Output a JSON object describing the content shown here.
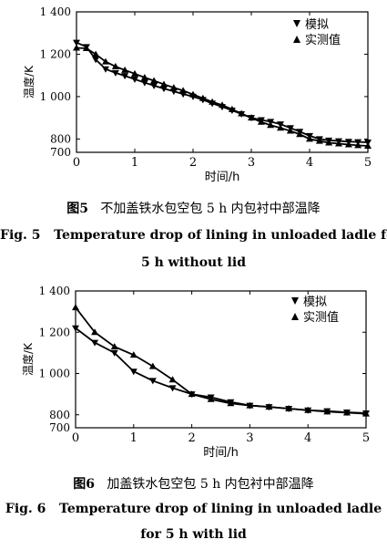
{
  "chart_data": [
    {
      "type": "line",
      "x_range": [
        0,
        5
      ],
      "ylim": [
        700,
        1400
      ],
      "x_ticks": [
        "0",
        "1",
        "2",
        "3",
        "4",
        "5"
      ],
      "y_ticks": [
        "1 400",
        "1 200",
        "1 000",
        "800",
        "700"
      ],
      "y_tick_values": [
        1400,
        1200,
        1000,
        800,
        700
      ],
      "xlabel": "时间/h",
      "ylabel": "温度/K",
      "legend_position": "top-right",
      "series": [
        {
          "name": "模拟",
          "marker": "triangle-down",
          "x": [
            0,
            0.17,
            0.33,
            0.5,
            0.67,
            0.83,
            1.0,
            1.17,
            1.33,
            1.5,
            1.67,
            1.83,
            2.0,
            2.17,
            2.33,
            2.5,
            2.67,
            2.83,
            3.0,
            3.17,
            3.33,
            3.5,
            3.67,
            3.83,
            4.0,
            4.17,
            4.33,
            4.5,
            4.67,
            4.83,
            5.0
          ],
          "y": [
            1255,
            1235,
            1175,
            1130,
            1112,
            1098,
            1082,
            1066,
            1052,
            1038,
            1025,
            1012,
            1000,
            985,
            968,
            952,
            935,
            918,
            900,
            890,
            882,
            870,
            852,
            835,
            815,
            800,
            790,
            785,
            780,
            778,
            775
          ]
        },
        {
          "name": "实测值",
          "marker": "triangle-up",
          "x": [
            0,
            0.17,
            0.33,
            0.5,
            0.67,
            0.83,
            1.0,
            1.17,
            1.33,
            1.5,
            1.67,
            1.83,
            2.0,
            2.17,
            2.33,
            2.5,
            2.67,
            2.83,
            3.0,
            3.17,
            3.33,
            3.5,
            3.67,
            3.83,
            4.0,
            4.17,
            4.33,
            4.5,
            4.67,
            4.83,
            5.0
          ],
          "y": [
            1230,
            1228,
            1200,
            1165,
            1142,
            1125,
            1108,
            1090,
            1075,
            1058,
            1042,
            1028,
            1010,
            992,
            975,
            960,
            940,
            920,
            900,
            880,
            865,
            852,
            838,
            822,
            800,
            785,
            772,
            765,
            758,
            752,
            748
          ]
        }
      ]
    },
    {
      "type": "line",
      "x_range": [
        0,
        5
      ],
      "ylim": [
        700,
        1400
      ],
      "x_ticks": [
        "0",
        "1",
        "2",
        "3",
        "4",
        "5"
      ],
      "y_ticks": [
        "1 400",
        "1 200",
        "1 000",
        "800",
        "700"
      ],
      "y_tick_values": [
        1400,
        1200,
        1000,
        800,
        700
      ],
      "xlabel": "时间/h",
      "ylabel": "温度/K",
      "legend_position": "top-right",
      "series": [
        {
          "name": "模拟",
          "marker": "triangle-down",
          "x": [
            0,
            0.33,
            0.67,
            1.0,
            1.33,
            1.67,
            2.0,
            2.33,
            2.67,
            3.0,
            3.33,
            3.67,
            4.0,
            4.33,
            4.67,
            5.0
          ],
          "y": [
            1220,
            1150,
            1100,
            1010,
            965,
            930,
            900,
            885,
            862,
            845,
            838,
            830,
            822,
            818,
            812,
            808
          ]
        },
        {
          "name": "实测值",
          "marker": "triangle-up",
          "x": [
            0,
            0.33,
            0.67,
            1.0,
            1.33,
            1.67,
            2.0,
            2.33,
            2.67,
            3.0,
            3.33,
            3.67,
            4.0,
            4.33,
            4.67,
            5.0
          ],
          "y": [
            1320,
            1200,
            1130,
            1090,
            1035,
            970,
            900,
            875,
            855,
            845,
            838,
            830,
            822,
            815,
            810,
            805
          ]
        }
      ]
    }
  ],
  "captions": {
    "fig5_num": "图5",
    "fig5_zh": "不加盖铁水包空包 5 h 内包衬中部温降",
    "fig5_en_num": "Fig. 5",
    "fig5_en_line1": "Temperature drop of lining in unloaded ladle fo",
    "fig5_en_line2": "5 h without lid",
    "fig6_num": "图6",
    "fig6_zh": "加盖铁水包空包 5 h 内包衬中部温降",
    "fig6_en_num": "Fig. 6",
    "fig6_en_line1": "Temperature drop of lining in unloaded ladle",
    "fig6_en_line2": "for 5 h with lid"
  }
}
